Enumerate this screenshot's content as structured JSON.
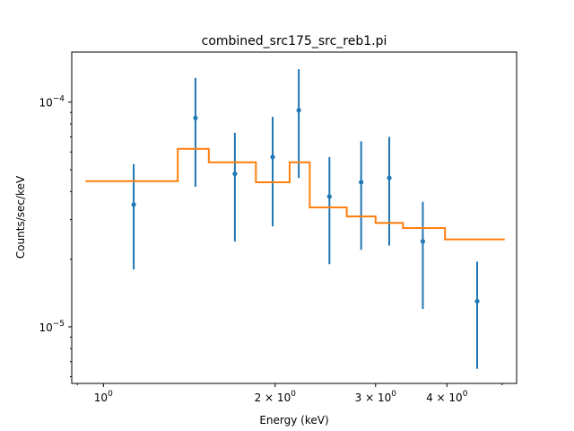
{
  "chart_data": {
    "type": "scatter",
    "title": "combined_src175_src_reb1.pi",
    "xlabel": "Energy (keV)",
    "ylabel": "Counts/sec/keV",
    "xscale": "log",
    "yscale": "log",
    "xlim": [
      0.88,
      5.3
    ],
    "ylim": [
      5.6e-06,
      0.000167
    ],
    "x_ticks": [
      {
        "value": 1,
        "base": "10",
        "exp": "0"
      },
      {
        "value": 2,
        "base": "2 × 10",
        "exp": "0"
      },
      {
        "value": 3,
        "base": "3 × 10",
        "exp": "0"
      },
      {
        "value": 4,
        "base": "4 × 10",
        "exp": "0"
      }
    ],
    "y_ticks": [
      {
        "value": 1e-05,
        "base": "10",
        "exp": "−5"
      },
      {
        "value": 0.0001,
        "base": "10",
        "exp": "−4"
      }
    ],
    "grid": false,
    "colors": {
      "data": "#1f77b4",
      "model": "#ff7f0e"
    },
    "series": [
      {
        "type": "errorbar",
        "points": [
          {
            "x": 1.13,
            "y": 3.5e-05,
            "ylo": 1.8e-05,
            "yhi": 5.3e-05
          },
          {
            "x": 1.45,
            "y": 8.5e-05,
            "ylo": 4.2e-05,
            "yhi": 0.000128
          },
          {
            "x": 1.7,
            "y": 4.8e-05,
            "ylo": 2.4e-05,
            "yhi": 7.3e-05
          },
          {
            "x": 1.98,
            "y": 5.7e-05,
            "ylo": 2.8e-05,
            "yhi": 8.6e-05
          },
          {
            "x": 2.2,
            "y": 9.2e-05,
            "ylo": 4.6e-05,
            "yhi": 0.00014
          },
          {
            "x": 2.49,
            "y": 3.8e-05,
            "ylo": 1.9e-05,
            "yhi": 5.7e-05
          },
          {
            "x": 2.83,
            "y": 4.4e-05,
            "ylo": 2.2e-05,
            "yhi": 6.7e-05
          },
          {
            "x": 3.17,
            "y": 4.6e-05,
            "ylo": 2.3e-05,
            "yhi": 7e-05
          },
          {
            "x": 3.63,
            "y": 2.4e-05,
            "ylo": 1.2e-05,
            "yhi": 3.6e-05
          },
          {
            "x": 4.52,
            "y": 1.3e-05,
            "ylo": 6.5e-06,
            "yhi": 1.95e-05
          }
        ]
      },
      {
        "type": "step",
        "points": [
          {
            "x0": 0.93,
            "x1": 1.35,
            "y": 4.45e-05
          },
          {
            "x0": 1.35,
            "x1": 1.53,
            "y": 6.2e-05
          },
          {
            "x0": 1.53,
            "x1": 1.85,
            "y": 5.4e-05
          },
          {
            "x0": 1.85,
            "x1": 2.12,
            "y": 4.4e-05
          },
          {
            "x0": 2.12,
            "x1": 2.3,
            "y": 5.4e-05
          },
          {
            "x0": 2.3,
            "x1": 2.67,
            "y": 3.4e-05
          },
          {
            "x0": 2.67,
            "x1": 3.0,
            "y": 3.1e-05
          },
          {
            "x0": 3.0,
            "x1": 3.35,
            "y": 2.9e-05
          },
          {
            "x0": 3.35,
            "x1": 3.97,
            "y": 2.75e-05
          },
          {
            "x0": 3.97,
            "x1": 5.05,
            "y": 2.45e-05
          }
        ]
      }
    ]
  }
}
